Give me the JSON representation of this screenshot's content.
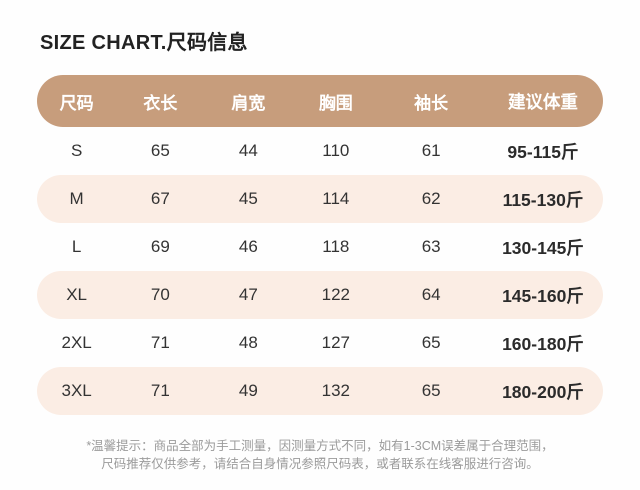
{
  "title": "SIZE CHART.尺码信息",
  "chart_data": {
    "type": "table",
    "title": "SIZE CHART.尺码信息",
    "columns": [
      "尺码",
      "衣长",
      "肩宽",
      "胸围",
      "袖长",
      "建议体重"
    ],
    "rows": [
      [
        "S",
        "65",
        "44",
        "110",
        "61",
        "95-115斤"
      ],
      [
        "M",
        "67",
        "45",
        "114",
        "62",
        "115-130斤"
      ],
      [
        "L",
        "69",
        "46",
        "118",
        "63",
        "130-145斤"
      ],
      [
        "XL",
        "70",
        "47",
        "122",
        "64",
        "145-160斤"
      ],
      [
        "2XL",
        "71",
        "48",
        "127",
        "65",
        "160-180斤"
      ],
      [
        "3XL",
        "71",
        "49",
        "132",
        "65",
        "180-200斤"
      ]
    ],
    "units": "cm except 建议体重 (斤)",
    "layout": "header pill row, zebra-striped rounded rows"
  },
  "footnote": {
    "line1": "*温馨提示：商品全部为手工测量，因测量方式不同，如有1-3CM误差属于合理范围，",
    "line2": "尺码推荐仅供参考，请结合自身情况参照尺码表，或者联系在线客服进行咨询。"
  },
  "colors": {
    "page_bg": "#FEFEFE",
    "header_bg": "#C79D7C",
    "alt_row_bg": "#FBEDE4",
    "header_text": "#FFFFFF",
    "body_text": "#333333",
    "title_text": "#222222",
    "footnote_text": "#9B9B9B"
  }
}
